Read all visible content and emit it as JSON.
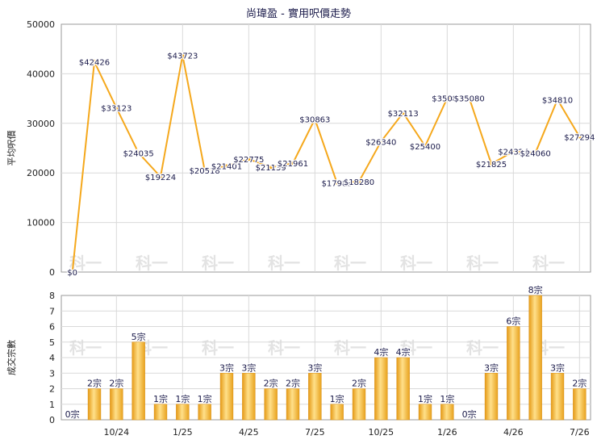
{
  "title": "尚瑋盈 - 實用呎價走勢",
  "chart_data": [
    {
      "type": "line",
      "ylabel": "平均呎價",
      "ylim": [
        0,
        50000
      ],
      "yticks": [
        "0",
        "10000",
        "20000",
        "30000",
        "40000",
        "50000"
      ],
      "color": "#f5a81c",
      "values": [
        0,
        42426,
        33123,
        24035,
        19224,
        43723,
        20518,
        21401,
        22775,
        21139,
        21961,
        30863,
        17983,
        18280,
        26340,
        32113,
        25400,
        35080,
        35080,
        21825,
        24324,
        24060,
        34810,
        27294
      ],
      "labels": [
        "$0",
        "$42426",
        "$33123",
        "$24035",
        "$19224",
        "$43723",
        "$20518",
        "$21401",
        "$22775",
        "$21139",
        "$21961",
        "$30863",
        "$17983",
        "$18280",
        "$26340",
        "$32113",
        "$25400",
        "$35080",
        "$35080",
        "$21825",
        "$24324",
        "$24060",
        "$34810",
        "$27294"
      ]
    },
    {
      "type": "bar",
      "ylabel": "成交宗數",
      "ylim": [
        0,
        8
      ],
      "yticks": [
        "0",
        "1",
        "2",
        "3",
        "4",
        "5",
        "6",
        "7",
        "8"
      ],
      "color": "#f0b43a",
      "values": [
        0,
        2,
        2,
        5,
        1,
        1,
        1,
        3,
        3,
        2,
        2,
        3,
        1,
        2,
        4,
        4,
        1,
        1,
        0,
        3,
        6,
        8,
        3,
        2
      ],
      "labels": [
        "0宗",
        "2宗",
        "2宗",
        "5宗",
        "1宗",
        "1宗",
        "1宗",
        "3宗",
        "3宗",
        "2宗",
        "2宗",
        "3宗",
        "1宗",
        "2宗",
        "4宗",
        "4宗",
        "1宗",
        "1宗",
        "0宗",
        "3宗",
        "6宗",
        "8宗",
        "3宗",
        "2宗"
      ],
      "xticks": [
        "10/24",
        "1/25",
        "4/25",
        "7/25",
        "10/25",
        "1/26",
        "4/26",
        "7/26"
      ]
    }
  ],
  "watermark": "科一"
}
